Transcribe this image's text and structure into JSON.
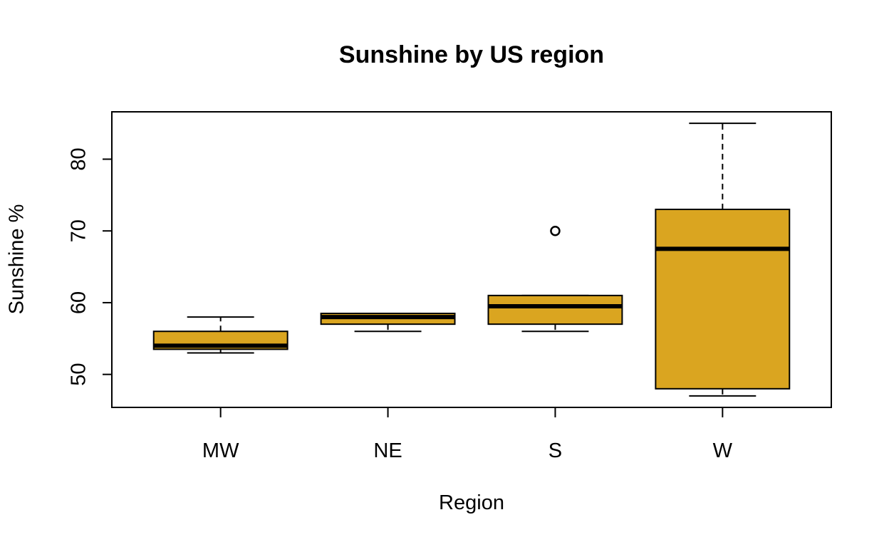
{
  "chart_data": {
    "type": "box",
    "title": "Sunshine by US region",
    "xlabel": "Region",
    "ylabel": "Sunshine %",
    "categories": [
      "MW",
      "NE",
      "S",
      "W"
    ],
    "boxes": [
      {
        "category": "MW",
        "min": 53,
        "q1": 53.5,
        "median": 54,
        "q3": 56,
        "max": 58,
        "outliers": []
      },
      {
        "category": "NE",
        "min": 56,
        "q1": 57,
        "median": 58,
        "q3": 58.5,
        "max": 58.5,
        "outliers": []
      },
      {
        "category": "S",
        "min": 56,
        "q1": 57,
        "median": 59.5,
        "q3": 61,
        "max": 61,
        "outliers": [
          70
        ]
      },
      {
        "category": "W",
        "min": 47,
        "q1": 48,
        "median": 67.5,
        "q3": 73,
        "max": 85,
        "outliers": []
      }
    ],
    "yticks": [
      50,
      60,
      70,
      80
    ],
    "ylim": [
      45.4,
      86.6
    ],
    "box_color": "#DAA520",
    "grid": false
  }
}
